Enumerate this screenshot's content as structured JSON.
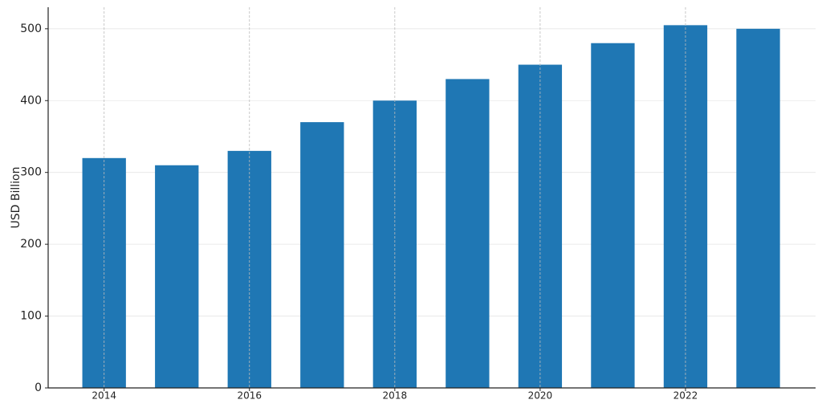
{
  "chart_data": {
    "type": "bar",
    "ylabel": "USD Billion",
    "x": [
      2014,
      2015,
      2016,
      2017,
      2018,
      2019,
      2020,
      2021,
      2022,
      2023
    ],
    "values": [
      320,
      310,
      330,
      370,
      400,
      430,
      450,
      480,
      505,
      500
    ],
    "color": "#1f77b4",
    "xlim": [
      2013.23,
      2023.79
    ],
    "xticks": [
      2014,
      2016,
      2018,
      2020,
      2022
    ],
    "ylim": [
      0,
      530
    ],
    "yticks": [
      0,
      100,
      200,
      300,
      400,
      500
    ],
    "grid": true
  }
}
